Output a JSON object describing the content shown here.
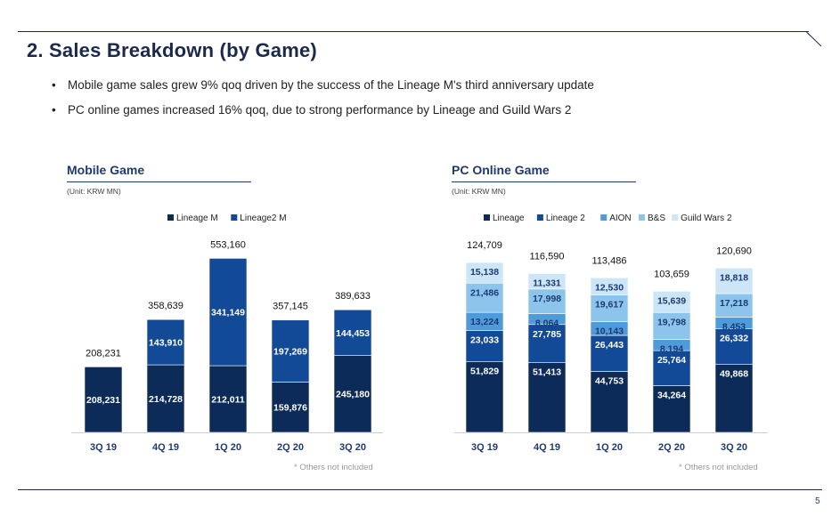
{
  "page": {
    "title": "2. Sales Breakdown (by Game)",
    "bullets": [
      "Mobile game sales grew 9% qoq driven by the success of the Lineage M's third anniversary update",
      "PC online games increased 16% qoq, due to strong performance by Lineage and Guild Wars 2"
    ],
    "page_number": "5"
  },
  "colors": {
    "lineage_m": "#0d2b58",
    "lineage2_m": "#134a97",
    "lineage": "#0d2b58",
    "lineage2": "#134a97",
    "aion": "#4f9bd9",
    "bns": "#8cc4ec",
    "gw2": "#cde6f7"
  },
  "mobile": {
    "section_title": "Mobile Game",
    "unit": "(Unit: KRW MN)",
    "footnote": "* Others not included"
  },
  "pc": {
    "section_title": "PC Online Game",
    "unit": "(Unit: KRW MN)",
    "footnote": "* Others not included"
  },
  "chart_data": [
    {
      "type": "bar",
      "stacked": true,
      "categories": [
        "3Q 19",
        "4Q 19",
        "1Q 20",
        "2Q 20",
        "3Q 20"
      ],
      "series": [
        {
          "name": "Lineage M",
          "values": [
            208231,
            214728,
            212011,
            159876,
            245180
          ],
          "color": "#0d2b58"
        },
        {
          "name": "Lineage2 M",
          "values": [
            null,
            143910,
            341149,
            197269,
            144453
          ],
          "color": "#134a97"
        }
      ],
      "totals": [
        208231,
        358639,
        553160,
        357145,
        389633
      ],
      "legend": "top-center",
      "grid": false,
      "ylim": [
        0,
        560000
      ]
    },
    {
      "type": "bar",
      "stacked": true,
      "categories": [
        "3Q 19",
        "4Q 19",
        "1Q 20",
        "2Q 20",
        "3Q 20"
      ],
      "series": [
        {
          "name": "Lineage",
          "values": [
            51829,
            51413,
            44753,
            34264,
            49868
          ],
          "color": "#0d2b58"
        },
        {
          "name": "Lineage 2",
          "values": [
            23033,
            27785,
            26443,
            25764,
            26332
          ],
          "color": "#134a97"
        },
        {
          "name": "AION",
          "values": [
            13224,
            8064,
            10143,
            8194,
            8453
          ],
          "color": "#4f9bd9"
        },
        {
          "name": "B&S",
          "values": [
            21486,
            17998,
            19617,
            19798,
            17218
          ],
          "color": "#8cc4ec"
        },
        {
          "name": "Guild Wars 2",
          "values": [
            15138,
            11331,
            12530,
            15639,
            18818
          ],
          "color": "#cde6f7"
        }
      ],
      "totals": [
        124709,
        116590,
        113486,
        103659,
        120690
      ],
      "legend": "top-center",
      "grid": false,
      "ylim": [
        0,
        130000
      ]
    }
  ]
}
